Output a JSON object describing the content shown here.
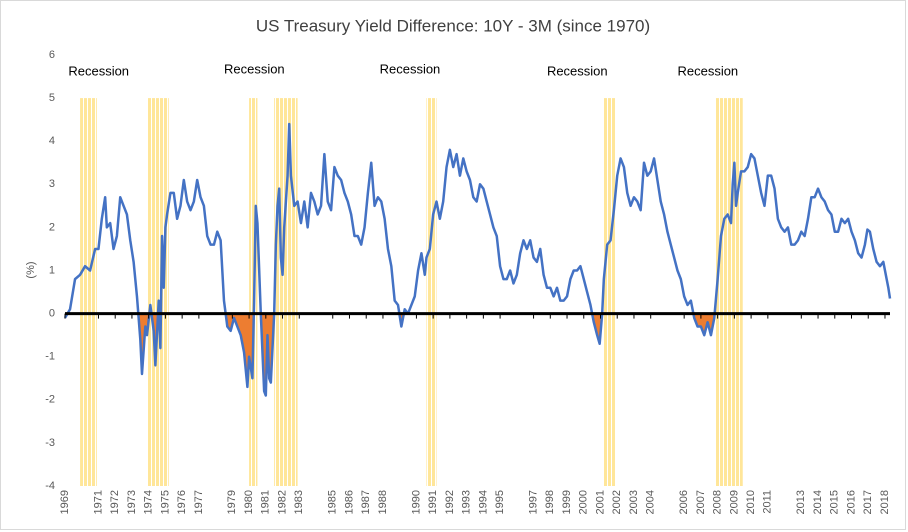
{
  "chart_data": {
    "type": "line",
    "title": "US Treasury Yield Difference: 10Y - 3M (since 1970)",
    "y_label": "(%)",
    "xlim": [
      1969,
      2018.3
    ],
    "ylim": [
      -4,
      6
    ],
    "yticks": [
      -4,
      -3,
      -2,
      -1,
      0,
      1,
      2,
      3,
      4,
      5,
      6
    ],
    "xticks": [
      1969,
      1971,
      1972,
      1973,
      1974,
      1975,
      1976,
      1977,
      1979,
      1980,
      1981,
      1982,
      1983,
      1985,
      1986,
      1987,
      1988,
      1990,
      1991,
      1992,
      1993,
      1994,
      1995,
      1997,
      1998,
      1999,
      2000,
      2001,
      2002,
      2003,
      2004,
      2006,
      2007,
      2008,
      2009,
      2010,
      2011,
      2013,
      2014,
      2015,
      2016,
      2017,
      2018
    ],
    "negative_fill_color": "#ed7d31",
    "recession_color": "#ffe699",
    "recessions": [
      [
        1969.9,
        1970.9
      ],
      [
        1973.9,
        1975.2
      ],
      [
        1980.0,
        1980.5
      ],
      [
        1981.5,
        1982.9
      ],
      [
        1990.6,
        1991.2
      ],
      [
        2001.2,
        2001.9
      ],
      [
        2007.9,
        2009.5
      ]
    ],
    "annotations": [
      {
        "text": "Recession",
        "x": 1969.2,
        "y": 5.6
      },
      {
        "text": "Recession",
        "x": 1978.5,
        "y": 5.65
      },
      {
        "text": "Recession",
        "x": 1987.8,
        "y": 5.65
      },
      {
        "text": "Recession",
        "x": 1997.8,
        "y": 5.6
      },
      {
        "text": "Recession",
        "x": 2005.6,
        "y": 5.6
      }
    ],
    "series": [
      {
        "name": "10Y - 3M",
        "color": "#4472c4",
        "x": [
          1969.0,
          1969.3,
          1969.6,
          1969.9,
          1970.2,
          1970.5,
          1970.8,
          1971.0,
          1971.2,
          1971.4,
          1971.5,
          1971.7,
          1971.9,
          1972.1,
          1972.3,
          1972.5,
          1972.7,
          1972.9,
          1973.1,
          1973.3,
          1973.5,
          1973.6,
          1973.8,
          1973.9,
          1974.1,
          1974.3,
          1974.4,
          1974.6,
          1974.7,
          1974.8,
          1974.9,
          1975.0,
          1975.1,
          1975.3,
          1975.5,
          1975.7,
          1975.9,
          1976.1,
          1976.3,
          1976.5,
          1976.7,
          1976.9,
          1977.1,
          1977.3,
          1977.5,
          1977.7,
          1977.9,
          1978.1,
          1978.3,
          1978.5,
          1978.7,
          1978.9,
          1979.1,
          1979.3,
          1979.5,
          1979.7,
          1979.9,
          1980.0,
          1980.2,
          1980.3,
          1980.4,
          1980.5,
          1980.7,
          1980.9,
          1981.0,
          1981.1,
          1981.2,
          1981.3,
          1981.5,
          1981.6,
          1981.7,
          1981.8,
          1981.9,
          1982.0,
          1982.1,
          1982.3,
          1982.4,
          1982.5,
          1982.7,
          1982.9,
          1983.1,
          1983.3,
          1983.5,
          1983.7,
          1983.9,
          1984.1,
          1984.3,
          1984.5,
          1984.7,
          1984.9,
          1985.1,
          1985.3,
          1985.5,
          1985.7,
          1985.9,
          1986.1,
          1986.3,
          1986.5,
          1986.7,
          1986.9,
          1987.1,
          1987.3,
          1987.5,
          1987.7,
          1987.9,
          1988.1,
          1988.3,
          1988.5,
          1988.7,
          1988.9,
          1989.1,
          1989.3,
          1989.5,
          1989.7,
          1989.9,
          1990.1,
          1990.3,
          1990.5,
          1990.6,
          1990.8,
          1991.0,
          1991.2,
          1991.4,
          1991.6,
          1991.8,
          1992.0,
          1992.2,
          1992.4,
          1992.6,
          1992.8,
          1993.0,
          1993.2,
          1993.4,
          1993.6,
          1993.8,
          1994.0,
          1994.2,
          1994.4,
          1994.6,
          1994.8,
          1995.0,
          1995.2,
          1995.4,
          1995.6,
          1995.8,
          1996.0,
          1996.2,
          1996.4,
          1996.6,
          1996.8,
          1997.0,
          1997.2,
          1997.4,
          1997.6,
          1997.8,
          1998.0,
          1998.2,
          1998.4,
          1998.6,
          1998.8,
          1999.0,
          1999.2,
          1999.4,
          1999.6,
          1999.8,
          2000.0,
          2000.2,
          2000.4,
          2000.6,
          2000.8,
          2000.95,
          2001.1,
          2001.2,
          2001.4,
          2001.6,
          2001.8,
          2002.0,
          2002.2,
          2002.4,
          2002.6,
          2002.8,
          2003.0,
          2003.2,
          2003.4,
          2003.6,
          2003.8,
          2004.0,
          2004.2,
          2004.4,
          2004.6,
          2004.8,
          2005.0,
          2005.2,
          2005.4,
          2005.6,
          2005.8,
          2006.0,
          2006.2,
          2006.4,
          2006.6,
          2006.8,
          2007.0,
          2007.2,
          2007.4,
          2007.6,
          2007.8,
          2008.0,
          2008.2,
          2008.4,
          2008.6,
          2008.8,
          2008.9,
          2009.0,
          2009.1,
          2009.2,
          2009.4,
          2009.6,
          2009.8,
          2010.0,
          2010.2,
          2010.4,
          2010.6,
          2010.8,
          2011.0,
          2011.2,
          2011.4,
          2011.6,
          2011.8,
          2012.0,
          2012.2,
          2012.4,
          2012.6,
          2012.8,
          2013.0,
          2013.2,
          2013.4,
          2013.6,
          2013.8,
          2014.0,
          2014.2,
          2014.4,
          2014.6,
          2014.8,
          2015.0,
          2015.2,
          2015.4,
          2015.6,
          2015.8,
          2016.0,
          2016.2,
          2016.4,
          2016.6,
          2016.8,
          2016.95,
          2017.1,
          2017.3,
          2017.5,
          2017.7,
          2017.9,
          2018.0,
          2018.1,
          2018.2,
          2018.3
        ],
        "values": [
          -0.1,
          0.1,
          0.8,
          0.9,
          1.1,
          1.0,
          1.5,
          1.5,
          2.2,
          2.7,
          2.0,
          2.1,
          1.5,
          1.8,
          2.7,
          2.5,
          2.3,
          1.7,
          1.2,
          0.4,
          -0.6,
          -1.4,
          -0.3,
          -0.5,
          0.2,
          -0.4,
          -1.2,
          0.3,
          -0.8,
          1.8,
          0.6,
          2.0,
          2.3,
          2.8,
          2.8,
          2.2,
          2.5,
          3.1,
          2.6,
          2.4,
          2.6,
          3.1,
          2.7,
          2.5,
          1.8,
          1.6,
          1.6,
          1.9,
          1.7,
          0.3,
          -0.3,
          -0.4,
          -0.1,
          -0.3,
          -0.5,
          -0.9,
          -1.7,
          -1.0,
          -1.5,
          0.3,
          2.5,
          2.1,
          0.0,
          -1.8,
          -1.9,
          -0.5,
          -1.5,
          -1.6,
          0.0,
          1.6,
          2.5,
          2.9,
          1.3,
          0.9,
          2.0,
          3.2,
          4.4,
          3.2,
          2.5,
          2.6,
          2.1,
          2.6,
          2.0,
          2.8,
          2.6,
          2.3,
          2.5,
          3.7,
          2.6,
          2.4,
          3.4,
          3.2,
          3.1,
          2.8,
          2.6,
          2.3,
          1.8,
          1.8,
          1.6,
          2.0,
          2.8,
          3.5,
          2.5,
          2.7,
          2.6,
          2.2,
          1.5,
          1.1,
          0.3,
          0.2,
          -0.3,
          0.1,
          0.0,
          0.2,
          0.4,
          1.0,
          1.4,
          0.9,
          1.3,
          1.5,
          2.3,
          2.6,
          2.2,
          2.6,
          3.4,
          3.8,
          3.4,
          3.7,
          3.2,
          3.6,
          3.3,
          3.1,
          2.7,
          2.6,
          3.0,
          2.9,
          2.6,
          2.3,
          2.0,
          1.8,
          1.1,
          0.8,
          0.8,
          1.0,
          0.7,
          0.9,
          1.4,
          1.7,
          1.5,
          1.7,
          1.3,
          1.2,
          1.5,
          0.9,
          0.6,
          0.6,
          0.4,
          0.6,
          0.3,
          0.3,
          0.4,
          0.8,
          1.0,
          1.0,
          1.1,
          0.8,
          0.5,
          0.2,
          -0.2,
          -0.5,
          -0.7,
          0.0,
          0.8,
          1.6,
          1.7,
          2.4,
          3.2,
          3.6,
          3.4,
          2.8,
          2.5,
          2.7,
          2.6,
          2.4,
          3.5,
          3.2,
          3.3,
          3.6,
          3.1,
          2.6,
          2.3,
          1.9,
          1.6,
          1.3,
          1.0,
          0.8,
          0.4,
          0.2,
          0.3,
          -0.1,
          -0.3,
          -0.3,
          -0.5,
          -0.2,
          -0.5,
          -0.1,
          0.8,
          1.8,
          2.2,
          2.3,
          2.1,
          3.0,
          3.5,
          2.5,
          2.8,
          3.3,
          3.3,
          3.4,
          3.7,
          3.6,
          3.2,
          2.8,
          2.5,
          3.2,
          3.2,
          2.9,
          2.2,
          2.0,
          1.9,
          2.0,
          1.6,
          1.6,
          1.7,
          1.9,
          1.8,
          2.2,
          2.7,
          2.7,
          2.9,
          2.7,
          2.6,
          2.4,
          2.3,
          1.9,
          1.9,
          2.2,
          2.1,
          2.2,
          1.9,
          1.7,
          1.4,
          1.3,
          1.6,
          1.95,
          1.9,
          1.5,
          1.2,
          1.1,
          1.2,
          1.0,
          0.8,
          0.6,
          0.35
        ]
      }
    ]
  }
}
